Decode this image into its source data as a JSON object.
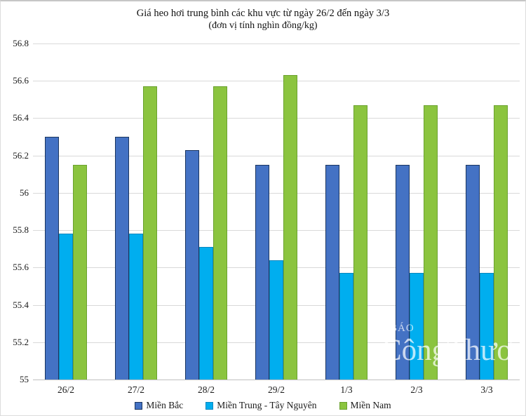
{
  "header": {
    "title": "Giá heo hơi trung bình các khu vực từ ngày 26/2 đến ngày 3/3",
    "subtitle": "(đơn vị tính nghìn đồng/kg)"
  },
  "watermark": {
    "line1": "BÁO",
    "line2": "CôngThương"
  },
  "colors": {
    "grid": "#d9d9d9",
    "axis": "#bfbfbf",
    "mien_bac_fill": "#4472C4",
    "mien_bac_border": "#1B3660",
    "mien_trung_fill": "#00AEEF",
    "mien_trung_border": "#0B87BE",
    "mien_nam_fill": "#8BC43F",
    "mien_nam_border": "#6BA22F"
  },
  "chart_data": {
    "type": "bar",
    "title": "Giá heo hơi trung bình các khu vực từ ngày 26/2 đến ngày 3/3",
    "subtitle": "(đơn vị tính nghìn đồng/kg)",
    "categories": [
      "26/2",
      "27/2",
      "28/2",
      "29/2",
      "1/3",
      "2/3",
      "3/3"
    ],
    "series": [
      {
        "name": "Miền Bắc",
        "fill": "#4472C4",
        "border": "#1B3660",
        "values": [
          56.3,
          56.3,
          56.23,
          56.15,
          56.15,
          56.15,
          56.15
        ]
      },
      {
        "name": "Miền Trung - Tây Nguyên",
        "fill": "#00AEEF",
        "border": "#0B87BE",
        "values": [
          55.78,
          55.78,
          55.71,
          55.64,
          55.57,
          55.57,
          55.57
        ]
      },
      {
        "name": "Miền Nam",
        "fill": "#8BC43F",
        "border": "#6BA22F",
        "values": [
          56.15,
          56.57,
          56.57,
          56.63,
          56.47,
          56.47,
          56.47
        ]
      }
    ],
    "xlabel": "",
    "ylabel": "",
    "ylim": [
      55,
      56.8
    ],
    "ytick_step": 0.2,
    "ytick_labels": [
      "55",
      "55.2",
      "55.4",
      "55.6",
      "55.8",
      "56",
      "56.2",
      "56.4",
      "56.6",
      "56.8"
    ],
    "grid": true,
    "legend_position": "bottom"
  }
}
